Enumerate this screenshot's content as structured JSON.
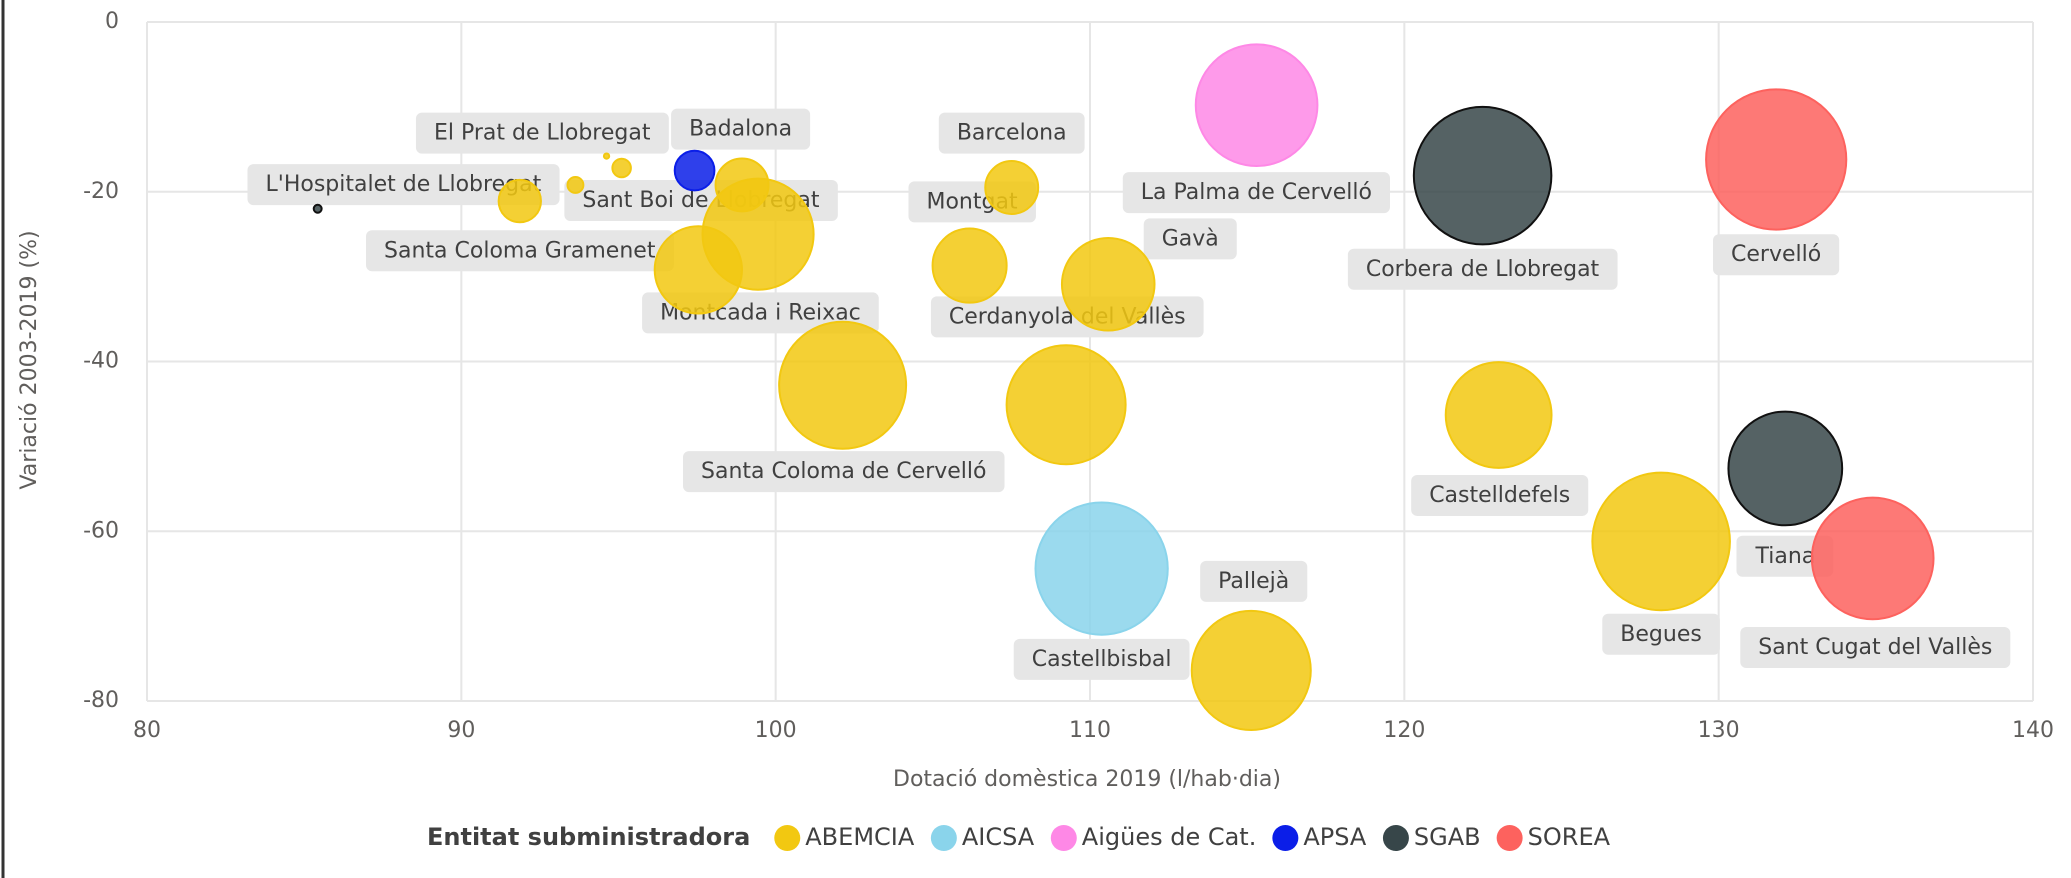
{
  "chart_data": {
    "type": "bubble",
    "x_label": "Dotació domèstica 2019 (l/hab·dia)",
    "y_label": "Variació 2003-2019 (%)",
    "legend_title": "Entitat subministradora",
    "xlim": [
      80,
      140
    ],
    "xticks": [
      80,
      90,
      100,
      110,
      120,
      130,
      140
    ],
    "ylim": [
      -80,
      0
    ],
    "yticks": [
      -80,
      -60,
      -40,
      -20,
      0
    ],
    "grid": true,
    "series": [
      {
        "name": "ABEMCIA",
        "color": "#f2c811",
        "labels": [
          "Santa Coloma Gramenet",
          null,
          null,
          "El Prat de Llobregat",
          "Badalona",
          "Sant Boi de Llobregat",
          "Montcada i Reixac",
          "Barcelona",
          "Montgat",
          "Gavà",
          "Santa Coloma de Cervelló",
          "Cerdanyola del Vallès",
          "Castelldefels",
          "Begues",
          "Pallejà"
        ],
        "x": [
          91.86,
          93.63,
          94.62,
          95.1,
          98.93,
          99.44,
          97.54,
          107.51,
          106.17,
          110.58,
          102.13,
          109.24,
          123.0,
          128.17,
          115.13
        ],
        "values": [
          -21.1,
          -19.2,
          -15.8,
          -17.2,
          -19.2,
          -25.0,
          -29.2,
          -19.5,
          -28.7,
          -30.9,
          -42.8,
          -45.1,
          -46.3,
          -61.2,
          -76.4
        ],
        "sizes": [
          16,
          6,
          2,
          7,
          20,
          42,
          33,
          20,
          28,
          35,
          48,
          45,
          40,
          52,
          45
        ]
      },
      {
        "name": "AICSA",
        "color": "#8ad4eb",
        "labels": [
          "Castellbisbal"
        ],
        "x": [
          110.37
        ],
        "values": [
          -64.4
        ],
        "sizes": [
          50
        ]
      },
      {
        "name": "Aigües de Cat.",
        "color": "#fe88e6",
        "labels": [
          "La Palma de Cervelló"
        ],
        "x": [
          115.3
        ],
        "values": [
          -9.8
        ],
        "sizes": [
          46
        ]
      },
      {
        "name": "APSA",
        "color": "#0b1ee8",
        "labels": [
          null
        ],
        "x": [
          97.42
        ],
        "values": [
          -17.5
        ],
        "sizes": [
          15
        ]
      },
      {
        "name": "SGAB",
        "color": "#374649",
        "labels": [
          "L'Hospitalet de Llobregat",
          "Corbera de Llobregat",
          "Tiana"
        ],
        "x": [
          85.43,
          122.49,
          132.12
        ],
        "values": [
          -22.0,
          -18.1,
          -52.6
        ],
        "sizes": [
          3,
          52,
          43
        ]
      },
      {
        "name": "SOREA",
        "color": "#fd625e",
        "labels": [
          "Cervelló",
          "Sant Cugat del Vallès"
        ],
        "x": [
          131.83,
          134.9
        ],
        "values": [
          -16.2,
          -63.2
        ],
        "sizes": [
          53,
          46
        ]
      }
    ]
  }
}
